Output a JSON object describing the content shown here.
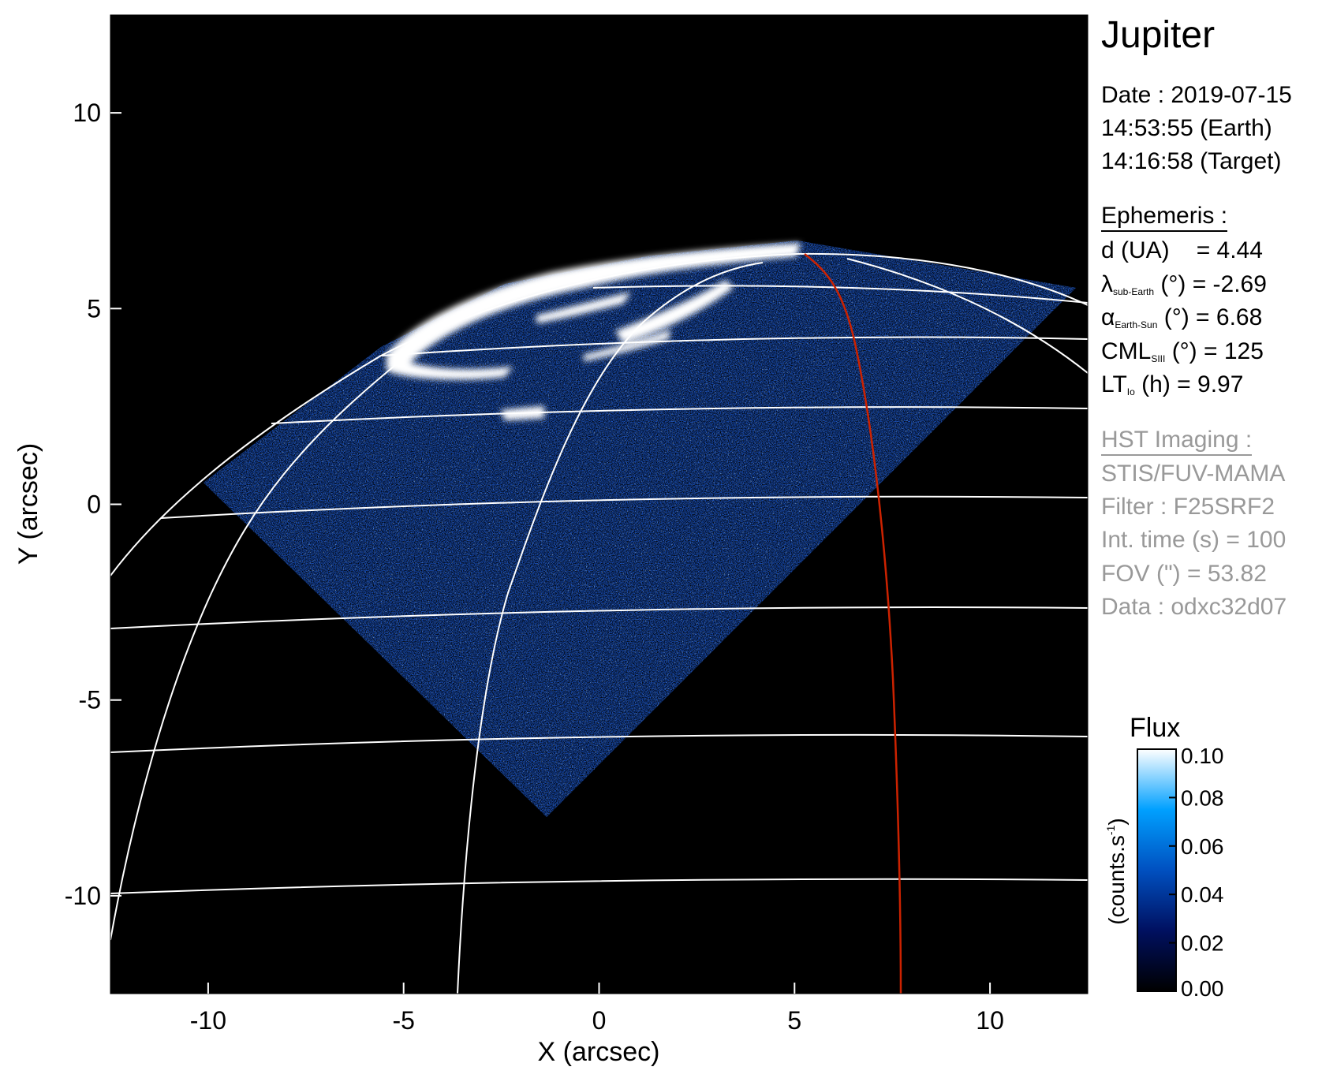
{
  "chart_data": {
    "type": "heatmap",
    "title": "Jupiter",
    "xlabel": "X (arcsec)",
    "ylabel": "Y (arcsec)",
    "xlim": [
      -12.5,
      12.5
    ],
    "ylim": [
      -12.5,
      12.5
    ],
    "xticks": [
      "-10",
      "-5",
      "0",
      "5",
      "10"
    ],
    "xtick_values": [
      -10,
      -5,
      0,
      5,
      10
    ],
    "yticks": [
      "10",
      "5",
      "0",
      "-5",
      "-10"
    ],
    "ytick_values": [
      10,
      5,
      0,
      -5,
      -10
    ],
    "colorbar": {
      "title": "Flux",
      "label": "(counts.s",
      "label_sup": "-1",
      "label_end": ")",
      "range": [
        0.0,
        0.1
      ],
      "ticks": [
        "0.10",
        "0.08",
        "0.06",
        "0.04",
        "0.02",
        "0.00"
      ],
      "tick_values": [
        0.1,
        0.08,
        0.06,
        0.04,
        0.02,
        0.0
      ],
      "colors": [
        "#000000",
        "#001060",
        "#0050c0",
        "#00a0ff",
        "#ffffff"
      ]
    },
    "grid_color": "#ffffff",
    "highlight_meridian_color": "#cc2200",
    "background": "#000000"
  },
  "info": {
    "planet": "Jupiter",
    "date": "Date : 2019-07-15",
    "time_earth": "14:53:55 (Earth)",
    "time_target": "14:16:58 (Target)",
    "ephemeris_title": "Ephemeris :",
    "d": {
      "label": "d (UA)",
      "value": "= 4.44"
    },
    "lambda": {
      "symbol": "λ",
      "sub": "sub-Earth",
      "unit": " (°) ",
      "value": "= -2.69"
    },
    "alpha": {
      "symbol": "α",
      "sub": "Earth-Sun",
      "unit": " (°) ",
      "value": "= 6.68"
    },
    "cml": {
      "symbol": "CML",
      "sub": "SIII",
      "unit": " (°) ",
      "value": "= 125"
    },
    "lt": {
      "symbol": "LT",
      "sub": "Io",
      "unit": " (h) ",
      "value": "= 9.97"
    },
    "hst_title": "HST Imaging :",
    "instrument": "STIS/FUV-MAMA",
    "filter": "Filter : F25SRF2",
    "int_time": "Int. time (s) = 100",
    "fov": "FOV (\") = 53.82",
    "data": "Data : odxc32d07"
  }
}
